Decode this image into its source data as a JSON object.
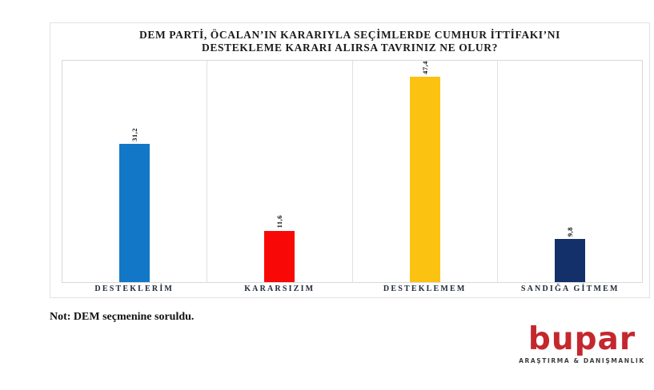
{
  "chart": {
    "title_line1": "DEM PARTİ, ÖCALAN’IN KARARIYLA SEÇİMLERDE CUMHUR İTTİFAKI’NI",
    "title_line2": "DESTEKLEME KARARI ALIRSA TAVRINIZ NE OLUR?"
  },
  "chart_data": {
    "type": "bar",
    "title": "DEM PARTİ, ÖCALAN’IN KARARIYLA SEÇİMLERDE CUMHUR İTTİFAKI’NI DESTEKLEME KARARI ALIRSA TAVRINIZ NE OLUR?",
    "categories": [
      "DESTEKLERİM",
      "KARARSIZIM",
      "DESTEKLEMEM",
      "SANDIĞA GİTMEM"
    ],
    "values": [
      31.2,
      11.6,
      47.4,
      9.8
    ],
    "value_labels": [
      "31,2",
      "11,6",
      "47,4",
      "9,8"
    ],
    "bar_colors": [
      "#1377c8",
      "#f90808",
      "#fcc211",
      "#13306b"
    ],
    "xlabel": "",
    "ylabel": "",
    "ylim": [
      0,
      50
    ],
    "grid": "vertical category separators only",
    "legend": "none",
    "value_label_rotation_deg": 90
  },
  "note": {
    "text": "Not: DEM seçmenine soruldu."
  },
  "logo": {
    "name": "bupar",
    "tagline": "ARAŞTIRMA & DANIŞMANLIK",
    "brand_color": "#c4282e",
    "tagline_color": "#3d3d3d"
  }
}
